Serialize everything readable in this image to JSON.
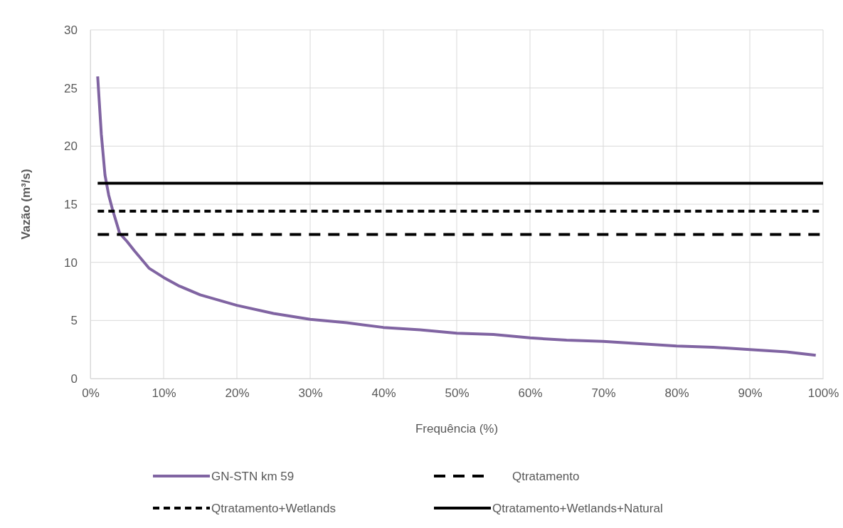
{
  "chart_data": {
    "type": "line",
    "xlabel": "Frequência (%)",
    "ylabel": "Vazão (m³/s)",
    "xlim": [
      0,
      100
    ],
    "ylim": [
      0,
      30
    ],
    "xticks": [
      {
        "value": 0,
        "label": "0%"
      },
      {
        "value": 10,
        "label": "10%"
      },
      {
        "value": 20,
        "label": "20%"
      },
      {
        "value": 30,
        "label": "30%"
      },
      {
        "value": 40,
        "label": "40%"
      },
      {
        "value": 50,
        "label": "50%"
      },
      {
        "value": 60,
        "label": "60%"
      },
      {
        "value": 70,
        "label": "70%"
      },
      {
        "value": 80,
        "label": "80%"
      },
      {
        "value": 90,
        "label": "90%"
      },
      {
        "value": 100,
        "label": "100%"
      }
    ],
    "yticks": [
      0,
      5,
      10,
      15,
      20,
      25,
      30
    ],
    "grid": true,
    "legend": "bottom",
    "marker": "none",
    "series": [
      {
        "name": "GN-STN km 59",
        "color": "#8064a2",
        "line_style": "solid",
        "x": [
          1,
          1.5,
          2,
          2.5,
          3,
          4,
          5,
          6,
          8,
          10,
          12,
          15,
          20,
          25,
          30,
          35,
          40,
          45,
          50,
          55,
          60,
          65,
          70,
          75,
          80,
          85,
          90,
          95,
          99
        ],
        "values": [
          26,
          21,
          17.5,
          15.8,
          14.6,
          12.5,
          11.8,
          11,
          9.5,
          8.7,
          8,
          7.2,
          6.3,
          5.6,
          5.1,
          4.8,
          4.4,
          4.2,
          3.9,
          3.8,
          3.5,
          3.3,
          3.2,
          3,
          2.8,
          2.7,
          2.5,
          2.3,
          2
        ]
      },
      {
        "name": "Qtratamento",
        "color": "#000000",
        "line_style": "dashed",
        "x": [
          1,
          100
        ],
        "values": [
          12.4,
          12.4
        ]
      },
      {
        "name": "Qtratamento+Wetlands",
        "color": "#000000",
        "line_style": "dotted",
        "x": [
          1,
          100
        ],
        "values": [
          14.4,
          14.4
        ]
      },
      {
        "name": "Qtratamento+Wetlands+Natural",
        "color": "#000000",
        "line_style": "solid",
        "x": [
          1,
          100
        ],
        "values": [
          16.8,
          16.8
        ]
      }
    ]
  }
}
